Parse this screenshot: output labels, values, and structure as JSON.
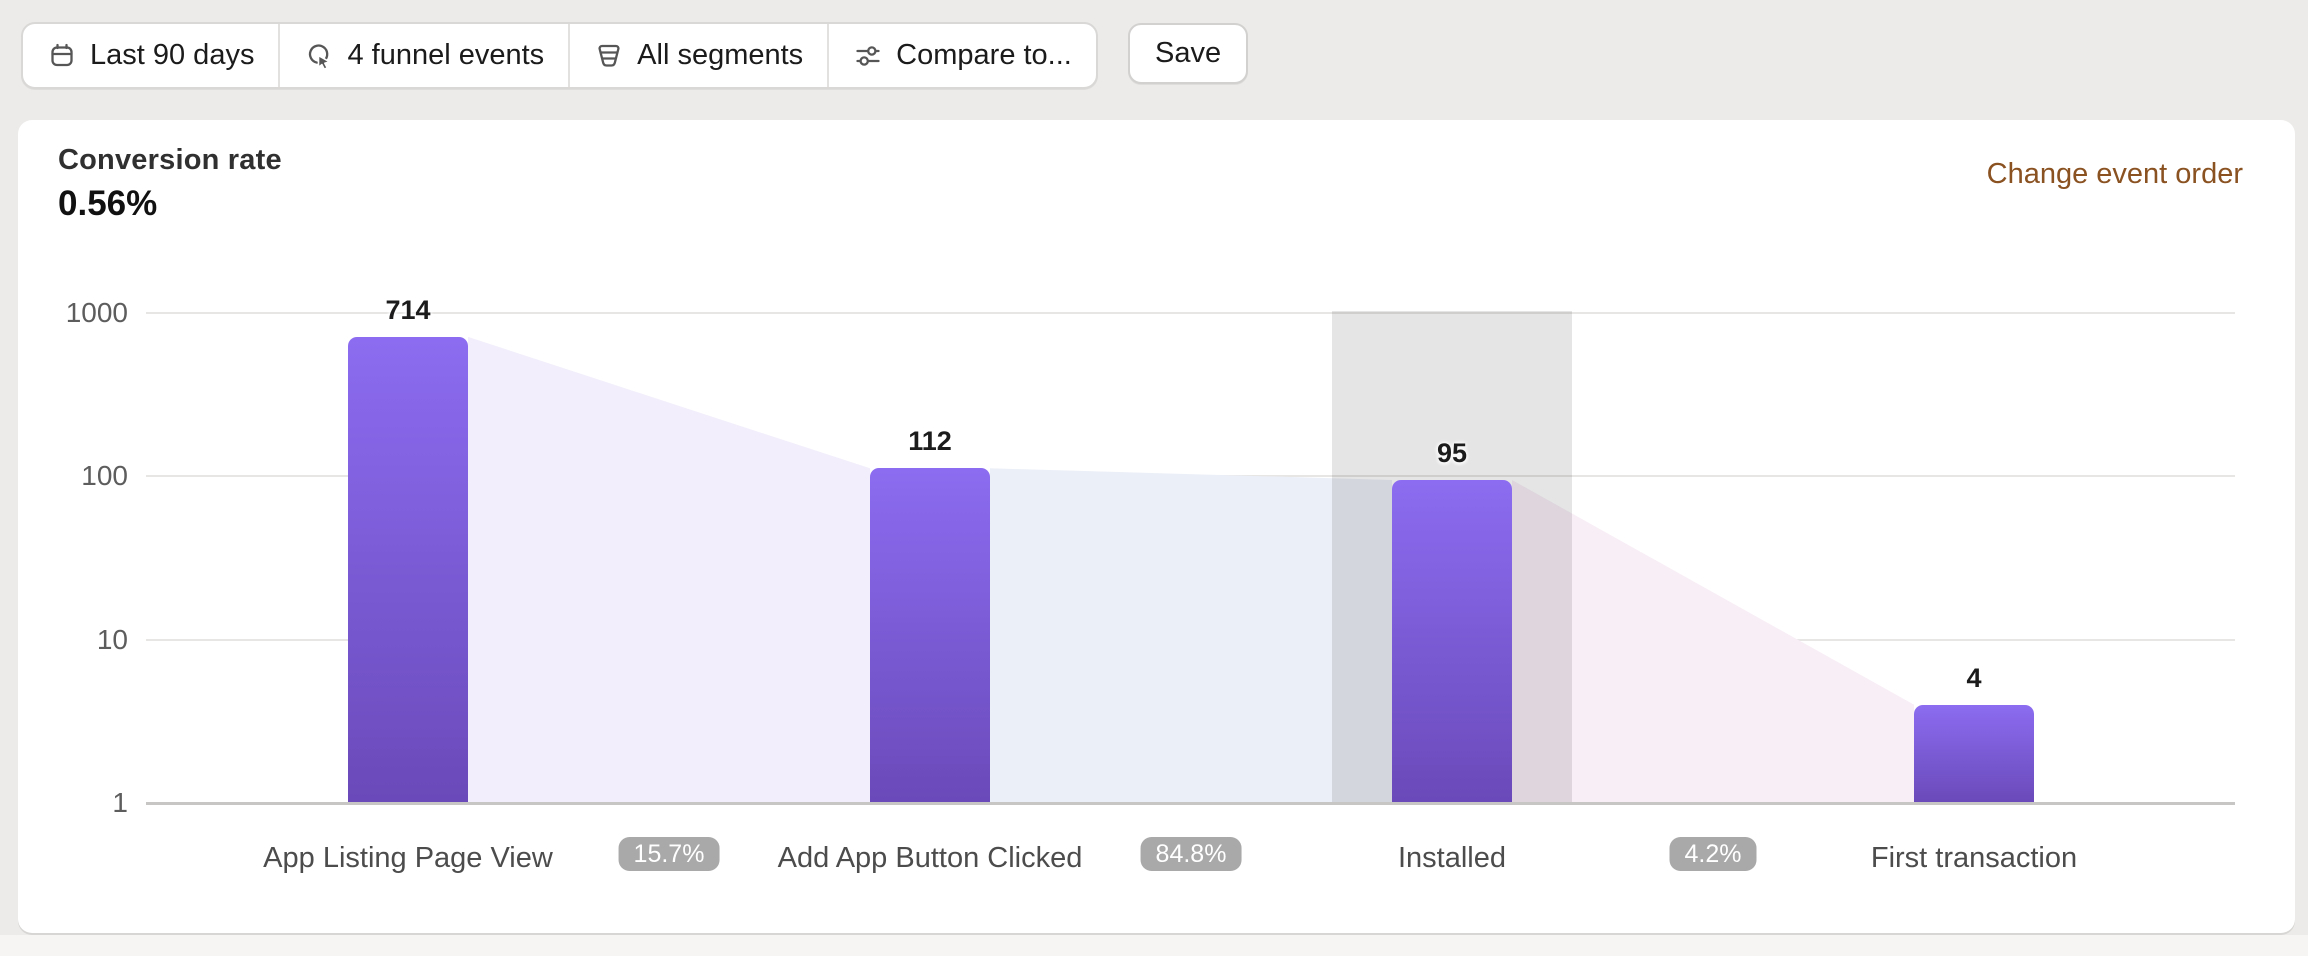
{
  "toolbar": {
    "buttons": [
      {
        "label": "Last 90 days",
        "icon": "calendar-icon"
      },
      {
        "label": "4 funnel events",
        "icon": "funnel-events-icon"
      },
      {
        "label": "All segments",
        "icon": "segments-filter-icon"
      },
      {
        "label": "Compare to...",
        "icon": "compare-sliders-icon"
      }
    ],
    "save_label": "Save"
  },
  "card": {
    "metric_label": "Conversion rate",
    "metric_value": "0.56%",
    "action_link": "Change event order"
  },
  "chart_data": {
    "type": "bar",
    "subtype": "funnel",
    "title": "Conversion rate",
    "y_scale": "log",
    "categories": [
      "App Listing Page View",
      "Add App Button Clicked",
      "Installed",
      "First transaction"
    ],
    "values": [
      714,
      112,
      95,
      4
    ],
    "step_conversions": [
      "15.7%",
      "84.8%",
      "4.2%"
    ],
    "y_ticks": [
      1000,
      100,
      10,
      1
    ],
    "ylim": [
      1,
      1000
    ],
    "xlabel": "",
    "ylabel": "",
    "grid": true,
    "legend": false,
    "highlighted_index": 2,
    "highlighted_category": "Installed",
    "colors": {
      "bar_gradient_top": "#8c6cf0",
      "bar_gradient_bottom": "#6a4ab9",
      "connectors": [
        "#f2eefb",
        "#ebeff7",
        "#f8eef6"
      ],
      "highlight_overlay": "rgba(0,0,0,0.10)",
      "pill_bg": "#a9a9a9",
      "pill_text": "#ffffff",
      "link": "#8a5121"
    }
  }
}
